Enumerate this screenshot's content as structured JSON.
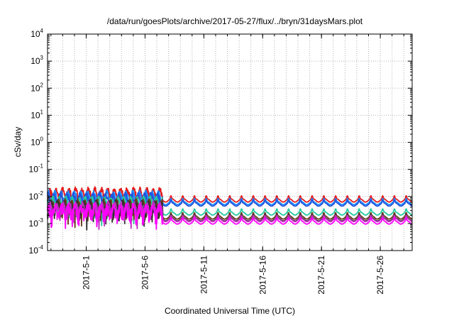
{
  "chart_data": {
    "type": "line",
    "title": "/data/run/goesPlots/archive/2017-05-27/flux/../bryn/31daysMars.plot",
    "xlabel": "Coordinated Universal Time (UTC)",
    "ylabel": "cSv/day",
    "y_scale": "log",
    "ylim": [
      0.0001,
      10000
    ],
    "xlim": [
      "2017-04-27T17:00",
      "2017-05-28T17:00"
    ],
    "grid": true,
    "y_ticks": [
      {
        "value": 0.0001,
        "base": "10",
        "exp": "-4"
      },
      {
        "value": 0.001,
        "base": "10",
        "exp": "-3"
      },
      {
        "value": 0.01,
        "base": "10",
        "exp": "-2"
      },
      {
        "value": 0.1,
        "base": "10",
        "exp": "-1"
      },
      {
        "value": 1,
        "base": "10",
        "exp": "0"
      },
      {
        "value": 10,
        "base": "10",
        "exp": "1"
      },
      {
        "value": 100,
        "base": "10",
        "exp": "2"
      },
      {
        "value": 1000,
        "base": "10",
        "exp": "3"
      },
      {
        "value": 10000,
        "base": "10",
        "exp": "4"
      }
    ],
    "x_ticks": [
      {
        "date": "2017-05-01",
        "label": "2017-5-1"
      },
      {
        "date": "2017-05-06",
        "label": "2017-5-6"
      },
      {
        "date": "2017-05-11",
        "label": "2017-5-11"
      },
      {
        "date": "2017-05-16",
        "label": "2017-5-16"
      },
      {
        "date": "2017-05-21",
        "label": "2017-5-21"
      },
      {
        "date": "2017-05-26",
        "label": "2017-5-26"
      }
    ],
    "series": [
      {
        "color": "#e41a1c",
        "early_level": 0.013,
        "late_level": 0.0085
      },
      {
        "color": "#1f8fff",
        "early_level": 0.01,
        "late_level": 0.0068
      },
      {
        "color": "#2255dd",
        "early_level": 0.0085,
        "late_level": 0.006
      },
      {
        "color": "#22c9a0",
        "early_level": 0.006,
        "late_level": 0.0028
      },
      {
        "color": "#6b3a1e",
        "early_level": 0.0048,
        "late_level": 0.002
      },
      {
        "color": "#303030",
        "early_level": 0.0042,
        "late_level": 0.0017
      },
      {
        "color": "#c030c0",
        "early_level": 0.0038,
        "late_level": 0.0016
      },
      {
        "color": "#ff00ff",
        "early_level": 0.0032,
        "late_level": 0.0013
      }
    ],
    "level_change_date": "2017-05-07"
  }
}
